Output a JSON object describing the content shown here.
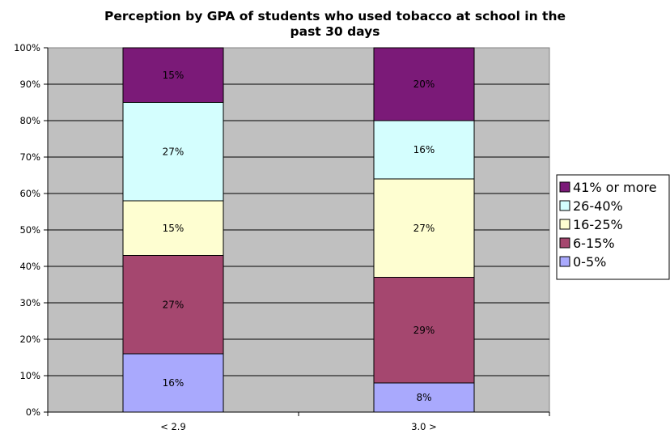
{
  "chart_data": {
    "type": "bar",
    "stacked": true,
    "percent_stacked": true,
    "title": "Perception by GPA of students who used tobacco at school in the past 30 days",
    "title_lines": [
      "Perception by GPA of students who used tobacco at school in the",
      "past 30 days"
    ],
    "xlabel": "",
    "ylabel": "",
    "categories": [
      "< 2.9",
      "3.0 >"
    ],
    "ylim": [
      0,
      100
    ],
    "y_ticks": [
      "0%",
      "10%",
      "20%",
      "30%",
      "40%",
      "50%",
      "60%",
      "70%",
      "80%",
      "90%",
      "100%"
    ],
    "grid": true,
    "legend_position": "right",
    "series": [
      {
        "name": "0-5%",
        "values": [
          16,
          8
        ],
        "labels": [
          "16%",
          "8%"
        ],
        "color": "#a9a9fd"
      },
      {
        "name": "6-15%",
        "values": [
          27,
          29
        ],
        "labels": [
          "27%",
          "29%"
        ],
        "color": "#a5476f"
      },
      {
        "name": "16-25%",
        "values": [
          15,
          27
        ],
        "labels": [
          "15%",
          "27%"
        ],
        "color": "#fefed1"
      },
      {
        "name": "26-40%",
        "values": [
          27,
          16
        ],
        "labels": [
          "27%",
          "16%"
        ],
        "color": "#d4fefe"
      },
      {
        "name": "41% or more",
        "values": [
          15,
          20
        ],
        "labels": [
          "15%",
          "20%"
        ],
        "color": "#7b1a78"
      }
    ],
    "legend_order": [
      "41% or more",
      "26-40%",
      "16-25%",
      "6-15%",
      "0-5%"
    ],
    "colors": {
      "plot_background": "#c0c0c0",
      "gridline": "#000000",
      "bar_border": "#000000",
      "page_background": "#ffffff"
    }
  }
}
